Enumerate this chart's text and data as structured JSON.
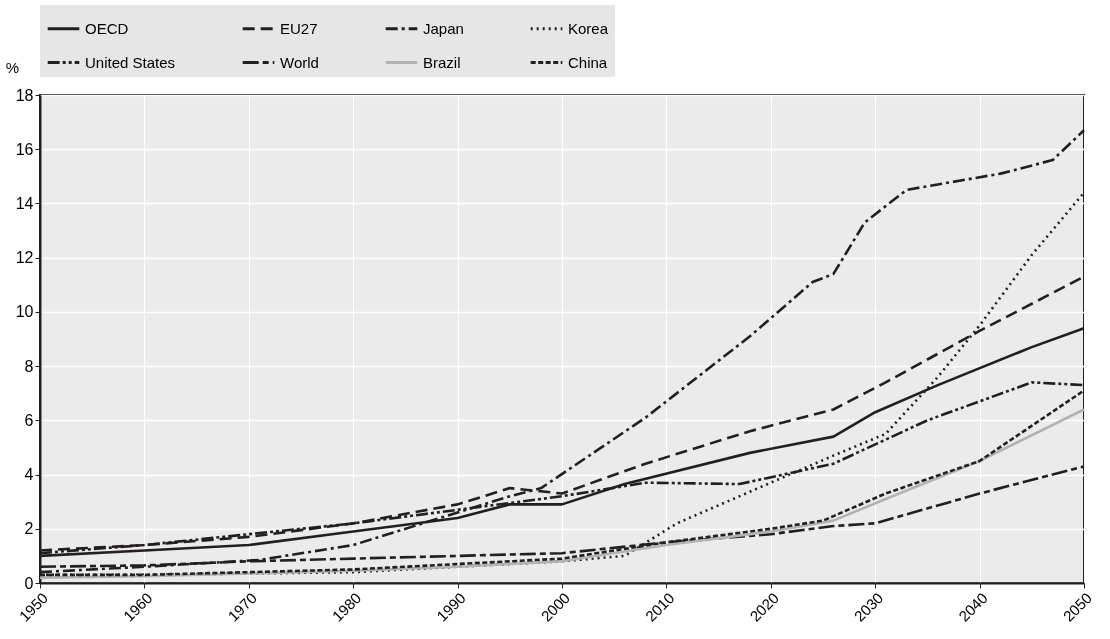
{
  "chart_data": {
    "type": "line",
    "ylabel": "%",
    "xlim": [
      1950,
      2050
    ],
    "xticks": [
      1950,
      1960,
      1970,
      1980,
      1990,
      2000,
      2010,
      2020,
      2030,
      2040,
      2050
    ],
    "ylim": [
      0,
      18
    ],
    "yticks": [
      0,
      2,
      4,
      6,
      8,
      10,
      12,
      14,
      16,
      18
    ],
    "grid": true,
    "legend": "top",
    "marker": "none",
    "series": [
      {
        "name": "OECD",
        "color": "#231f20",
        "line_style": "solid",
        "x": [
          1950,
          1960,
          1970,
          1980,
          1990,
          1995,
          2000,
          2006,
          2018,
          2026,
          2030,
          2036,
          2045,
          2050
        ],
        "values": [
          1.0,
          1.2,
          1.4,
          1.9,
          2.4,
          2.9,
          2.9,
          3.65,
          4.8,
          5.4,
          6.3,
          7.3,
          8.7,
          9.4
        ]
      },
      {
        "name": "EU27",
        "color": "#231f20",
        "line_style": "dashed",
        "x": [
          1950,
          1960,
          1970,
          1980,
          1990,
          1995,
          2000,
          2008,
          2018,
          2026,
          2031,
          2040,
          2050
        ],
        "values": [
          1.2,
          1.4,
          1.7,
          2.2,
          2.9,
          3.5,
          3.3,
          4.4,
          5.6,
          6.4,
          7.4,
          9.3,
          11.3
        ]
      },
      {
        "name": "Japan",
        "color": "#231f20",
        "line_style": "dashdot",
        "x": [
          1950,
          1960,
          1971,
          1980,
          1990,
          1995,
          1998,
          2008,
          2018,
          2024,
          2026,
          2029,
          2033,
          2036,
          2042,
          2047,
          2050
        ],
        "values": [
          0.4,
          0.6,
          0.85,
          1.4,
          2.6,
          3.2,
          3.5,
          6.1,
          9.1,
          11.1,
          11.4,
          13.3,
          14.5,
          14.7,
          15.1,
          15.6,
          16.7
        ]
      },
      {
        "name": "Korea",
        "color": "#231f20",
        "line_style": "dotted",
        "x": [
          1950,
          1960,
          1970,
          1980,
          1990,
          2000,
          2006,
          2011,
          2020,
          2026,
          2031,
          2036,
          2040,
          2045,
          2050
        ],
        "values": [
          0.3,
          0.3,
          0.35,
          0.4,
          0.6,
          0.8,
          1.0,
          2.2,
          3.7,
          4.7,
          5.5,
          7.6,
          9.5,
          12.1,
          14.4
        ]
      },
      {
        "name": "United States",
        "color": "#231f20",
        "line_style": "dashdotdot",
        "x": [
          1950,
          1960,
          1970,
          1980,
          1990,
          2000,
          2008,
          2017,
          2026,
          2035,
          2045,
          2050
        ],
        "values": [
          1.1,
          1.4,
          1.8,
          2.2,
          2.7,
          3.2,
          3.7,
          3.65,
          4.4,
          6.0,
          7.4,
          7.3
        ]
      },
      {
        "name": "World",
        "color": "#231f20",
        "line_style": "longdash",
        "x": [
          1950,
          1960,
          1970,
          1980,
          1990,
          2000,
          2010,
          2020,
          2026,
          2030,
          2040,
          2050
        ],
        "values": [
          0.6,
          0.65,
          0.8,
          0.9,
          1.0,
          1.1,
          1.5,
          1.8,
          2.1,
          2.2,
          3.3,
          4.3
        ]
      },
      {
        "name": "Brazil",
        "color": "#b3b3b3",
        "line_style": "solid",
        "x": [
          1950,
          1960,
          1970,
          1980,
          1990,
          2000,
          2010,
          2020,
          2026,
          2031,
          2040,
          2050
        ],
        "values": [
          0.2,
          0.25,
          0.35,
          0.45,
          0.6,
          0.8,
          1.4,
          1.9,
          2.3,
          3.1,
          4.5,
          6.4
        ]
      },
      {
        "name": "China",
        "color": "#231f20",
        "line_style": "shortdash",
        "x": [
          1950,
          1960,
          1970,
          1980,
          1990,
          2000,
          2010,
          2020,
          2025,
          2031,
          2040,
          2050
        ],
        "values": [
          0.3,
          0.3,
          0.4,
          0.5,
          0.7,
          0.9,
          1.5,
          2.0,
          2.3,
          3.3,
          4.5,
          7.1
        ]
      }
    ]
  }
}
